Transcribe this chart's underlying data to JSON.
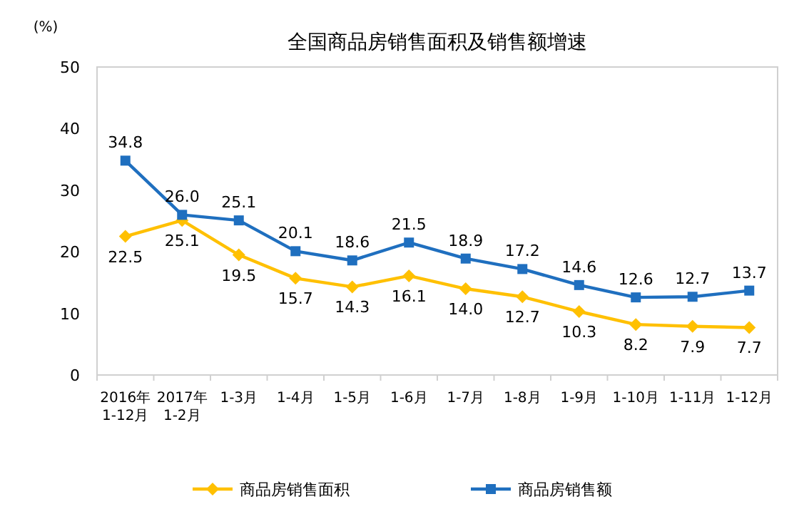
{
  "chart_data": {
    "type": "line",
    "title": "全国商品房销售面积及销售额增速",
    "ylabel": "(%)",
    "categories": [
      "2016年\n1-12月",
      "2017年\n1-2月",
      "1-3月",
      "1-4月",
      "1-5月",
      "1-6月",
      "1-7月",
      "1-8月",
      "1-9月",
      "1-10月",
      "1-11月",
      "1-12月"
    ],
    "series": [
      {
        "name": "商品房销售面积",
        "color": "#ffc000",
        "marker": "diamond",
        "values": [
          22.5,
          25.1,
          19.5,
          15.7,
          14.3,
          16.1,
          14.0,
          12.7,
          10.3,
          8.2,
          7.9,
          7.7
        ],
        "value_labels": [
          "22.5",
          "25.1",
          "19.5",
          "15.7",
          "14.3",
          "16.1",
          "14.0",
          "12.7",
          "10.3",
          "8.2",
          "7.9",
          "7.7"
        ]
      },
      {
        "name": "商品房销售额",
        "color": "#1f6fbf",
        "marker": "square",
        "values": [
          34.8,
          26.0,
          25.1,
          20.1,
          18.6,
          21.5,
          18.9,
          17.2,
          14.6,
          12.6,
          12.7,
          13.7
        ],
        "value_labels": [
          "34.8",
          "26.0",
          "25.1",
          "20.1",
          "18.6",
          "21.5",
          "18.9",
          "17.2",
          "14.6",
          "12.6",
          "12.7",
          "13.7"
        ]
      }
    ],
    "ylim": [
      0,
      50
    ],
    "yticks": [
      0,
      10,
      20,
      30,
      40,
      50
    ],
    "grid": false,
    "legend": "bottom"
  }
}
